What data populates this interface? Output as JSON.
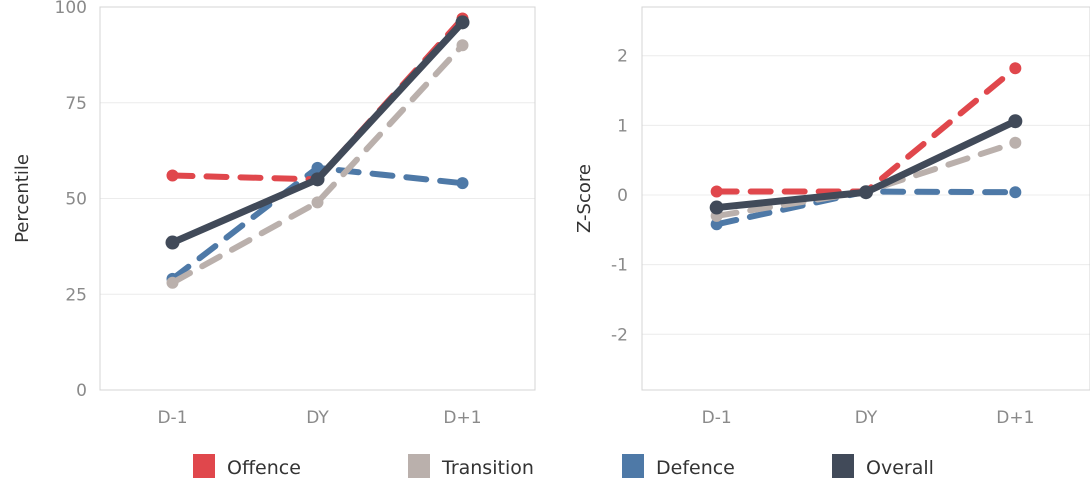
{
  "legend": [
    {
      "name": "Offence",
      "color": "#e0474c"
    },
    {
      "name": "Transition",
      "color": "#bab0ac"
    },
    {
      "name": "Defence",
      "color": "#4e79a7"
    },
    {
      "name": "Overall",
      "color": "#414a59"
    }
  ],
  "chart_data": [
    {
      "type": "line",
      "title": "",
      "xlabel": "",
      "ylabel": "Percentile",
      "categories": [
        "D-1",
        "DY",
        "D+1"
      ],
      "ylim": [
        0,
        100
      ],
      "yticks": [
        0,
        25,
        50,
        75,
        100
      ],
      "grid": true,
      "series": [
        {
          "name": "Offence",
          "values": [
            56,
            55,
            97
          ],
          "color": "#e0474c",
          "dashed": true
        },
        {
          "name": "Transition",
          "values": [
            28,
            49,
            90
          ],
          "color": "#bab0ac",
          "dashed": true
        },
        {
          "name": "Defence",
          "values": [
            29,
            58,
            54
          ],
          "color": "#4e79a7",
          "dashed": true
        },
        {
          "name": "Overall",
          "values": [
            38.5,
            55,
            96
          ],
          "color": "#414a59",
          "dashed": false
        }
      ]
    },
    {
      "type": "line",
      "title": "",
      "xlabel": "",
      "ylabel": "Z-Score",
      "categories": [
        "D-1",
        "DY",
        "D+1"
      ],
      "ylim": [
        -2.8,
        2.7
      ],
      "yticks": [
        -2,
        -1,
        0,
        1,
        2
      ],
      "grid": true,
      "series": [
        {
          "name": "Offence",
          "values": [
            0.05,
            0.05,
            1.82
          ],
          "color": "#e0474c",
          "dashed": true
        },
        {
          "name": "Transition",
          "values": [
            -0.3,
            0.05,
            0.75
          ],
          "color": "#bab0ac",
          "dashed": true
        },
        {
          "name": "Defence",
          "values": [
            -0.42,
            0.05,
            0.04
          ],
          "color": "#4e79a7",
          "dashed": true
        },
        {
          "name": "Overall",
          "values": [
            -0.18,
            0.04,
            1.06
          ],
          "color": "#414a59",
          "dashed": false
        }
      ]
    }
  ]
}
